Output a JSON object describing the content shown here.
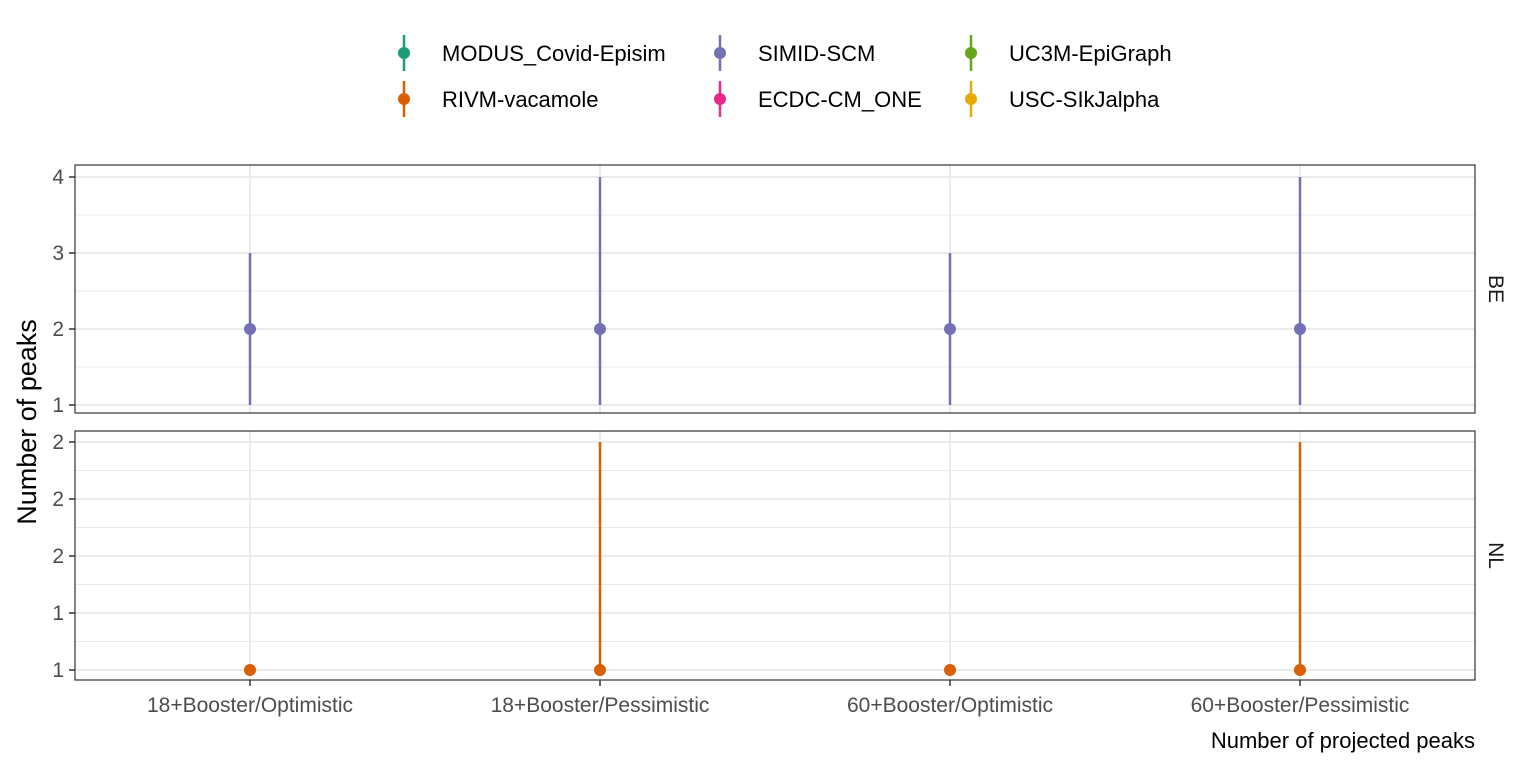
{
  "chart_data": {
    "type": "scatter",
    "xlabel": "Number of projected peaks",
    "ylabel": "Number of peaks",
    "categories": [
      "18+Booster/Optimistic",
      "18+Booster/Pessimistic",
      "60+Booster/Optimistic",
      "60+Booster/Pessimistic"
    ],
    "legend": [
      {
        "name": "MODUS_Covid-Episim",
        "color": "#1b9e77"
      },
      {
        "name": "RIVM-vacamole",
        "color": "#d95f02"
      },
      {
        "name": "SIMID-SCM",
        "color": "#7570b3"
      },
      {
        "name": "ECDC-CM_ONE",
        "color": "#e7298a"
      },
      {
        "name": "UC3M-EpiGraph",
        "color": "#66a61e"
      },
      {
        "name": "USC-SIkJalpha",
        "color": "#e6ab02"
      }
    ],
    "legend_position": "top",
    "grid": true,
    "panels": [
      {
        "strip": "BE",
        "ylim": [
          1,
          4
        ],
        "yticks": [
          {
            "value": 1,
            "label": "1"
          },
          {
            "value": 2,
            "label": "2"
          },
          {
            "value": 3,
            "label": "3"
          },
          {
            "value": 4,
            "label": "4"
          }
        ],
        "series": [
          {
            "name": "SIMID-SCM",
            "color": "#7570b3",
            "points": [
              {
                "x": "18+Booster/Optimistic",
                "y": 2,
                "lower": 1,
                "upper": 3
              },
              {
                "x": "18+Booster/Pessimistic",
                "y": 2,
                "lower": 1,
                "upper": 4
              },
              {
                "x": "60+Booster/Optimistic",
                "y": 2,
                "lower": 1,
                "upper": 3
              },
              {
                "x": "60+Booster/Pessimistic",
                "y": 2,
                "lower": 1,
                "upper": 4
              }
            ]
          }
        ]
      },
      {
        "strip": "NL",
        "ylim": [
          1,
          2
        ],
        "yticks": [
          {
            "value": 1,
            "label": "1"
          },
          {
            "value": 1.25,
            "label": "1"
          },
          {
            "value": 1.5,
            "label": "2"
          },
          {
            "value": 1.75,
            "label": "2"
          },
          {
            "value": 2,
            "label": "2"
          }
        ],
        "series": [
          {
            "name": "RIVM-vacamole",
            "color": "#d95f02",
            "points": [
              {
                "x": "18+Booster/Optimistic",
                "y": 1,
                "lower": 1,
                "upper": 1
              },
              {
                "x": "18+Booster/Pessimistic",
                "y": 1,
                "lower": 1,
                "upper": 2
              },
              {
                "x": "60+Booster/Optimistic",
                "y": 1,
                "lower": 1,
                "upper": 1
              },
              {
                "x": "60+Booster/Pessimistic",
                "y": 1,
                "lower": 1,
                "upper": 2
              }
            ]
          }
        ]
      }
    ]
  }
}
